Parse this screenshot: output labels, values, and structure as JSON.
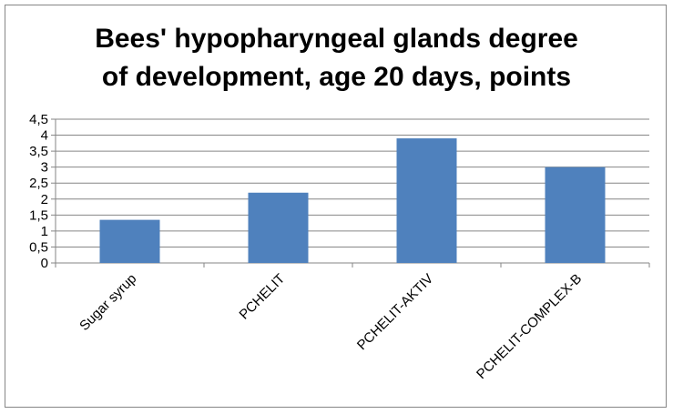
{
  "chart_data": {
    "type": "bar",
    "title_line1": "Bees' hypopharyngeal glands degree",
    "title_line2": "of development, age 20 days, points",
    "categories": [
      "Sugar syrup",
      "PCHELIT",
      "PCHELIT-AKTIV",
      "PCHELIT-COMPLEX-B"
    ],
    "values": [
      1.35,
      2.2,
      3.9,
      3.0
    ],
    "ylim": [
      0,
      4.5
    ],
    "yticks": [
      "0",
      "0,5",
      "1",
      "1,5",
      "2",
      "2,5",
      "3",
      "3,5",
      "4",
      "4,5"
    ],
    "grid": true,
    "legend": "none",
    "bar_color": "#4f81bd"
  }
}
